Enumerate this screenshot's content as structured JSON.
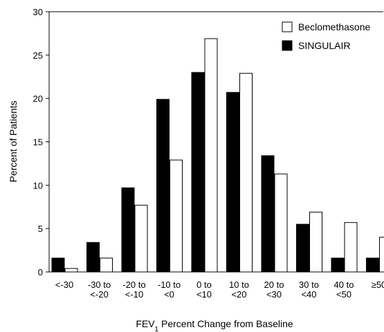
{
  "chart_data": {
    "type": "bar",
    "title": "",
    "xlabel": "FEV",
    "xlabel_sub": "1",
    "xlabel_rest": " Percent Change from Baseline",
    "ylabel": "Percent of Patients",
    "ylim": [
      0,
      30
    ],
    "yticks": [
      "0",
      "5",
      "10",
      "15",
      "20",
      "25",
      "30"
    ],
    "categories": [
      [
        "<-30"
      ],
      [
        "-30 to",
        "<-20"
      ],
      [
        "-20 to",
        "<-10"
      ],
      [
        "-10 to",
        "<0"
      ],
      [
        "0 to",
        "<10"
      ],
      [
        "10 to",
        "<20"
      ],
      [
        "20 to",
        "<30"
      ],
      [
        "30 to",
        "<40"
      ],
      [
        "40 to",
        "<50"
      ],
      [
        "≥50"
      ]
    ],
    "series": [
      {
        "name": "SINGULAIR",
        "color": "#000000",
        "values": [
          1.6,
          3.4,
          9.7,
          19.9,
          23.0,
          20.7,
          13.4,
          5.5,
          1.6,
          1.6
        ]
      },
      {
        "name": "Beclomethasone",
        "color": "#ffffff",
        "values": [
          0.4,
          1.6,
          7.7,
          12.9,
          26.9,
          22.9,
          11.3,
          6.9,
          5.7,
          4.0
        ]
      }
    ],
    "legend": {
      "position": "top-right",
      "order": [
        "Beclomethasone",
        "SINGULAIR"
      ]
    }
  }
}
